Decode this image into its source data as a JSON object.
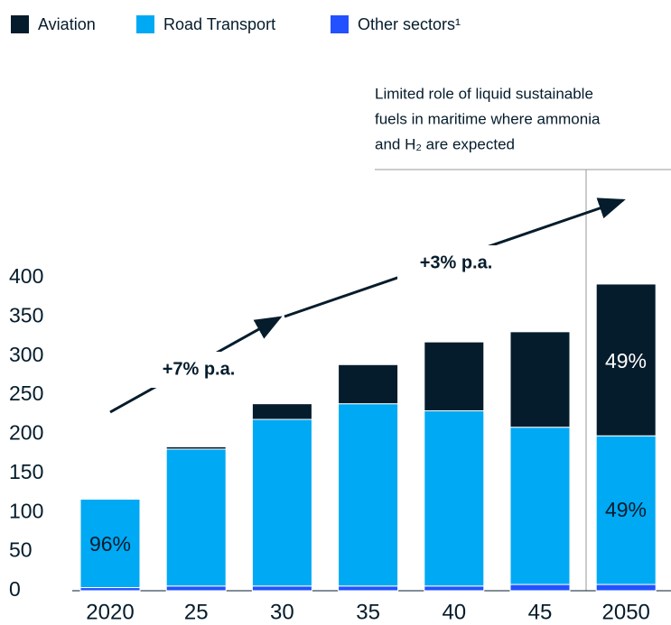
{
  "chart_data": {
    "type": "stacked_bar",
    "categories": [
      "2020",
      "25",
      "30",
      "35",
      "40",
      "45",
      "2050"
    ],
    "series": [
      {
        "name": "Aviation",
        "color": "#051c2c",
        "values": [
          1,
          3,
          20,
          50,
          88,
          122,
          194
        ]
      },
      {
        "name": "Road Transport",
        "color": "#00a9f4",
        "values": [
          113,
          175,
          213,
          233,
          224,
          201,
          190
        ]
      },
      {
        "name": "Other sectors¹",
        "color": "#2251ff",
        "values": [
          4,
          6,
          6,
          6,
          6,
          8,
          8
        ]
      }
    ],
    "ylim": [
      0,
      400
    ],
    "yticks": [
      0,
      50,
      100,
      150,
      200,
      250,
      300,
      350,
      400
    ],
    "annotations": [
      "+7% p.a.",
      "+3% p.a.",
      "96%",
      "49%",
      "49%"
    ],
    "note": [
      "Limited role of liquid sustainable",
      "fuels in maritime where ammonia",
      "and H₂ are expected"
    ]
  }
}
